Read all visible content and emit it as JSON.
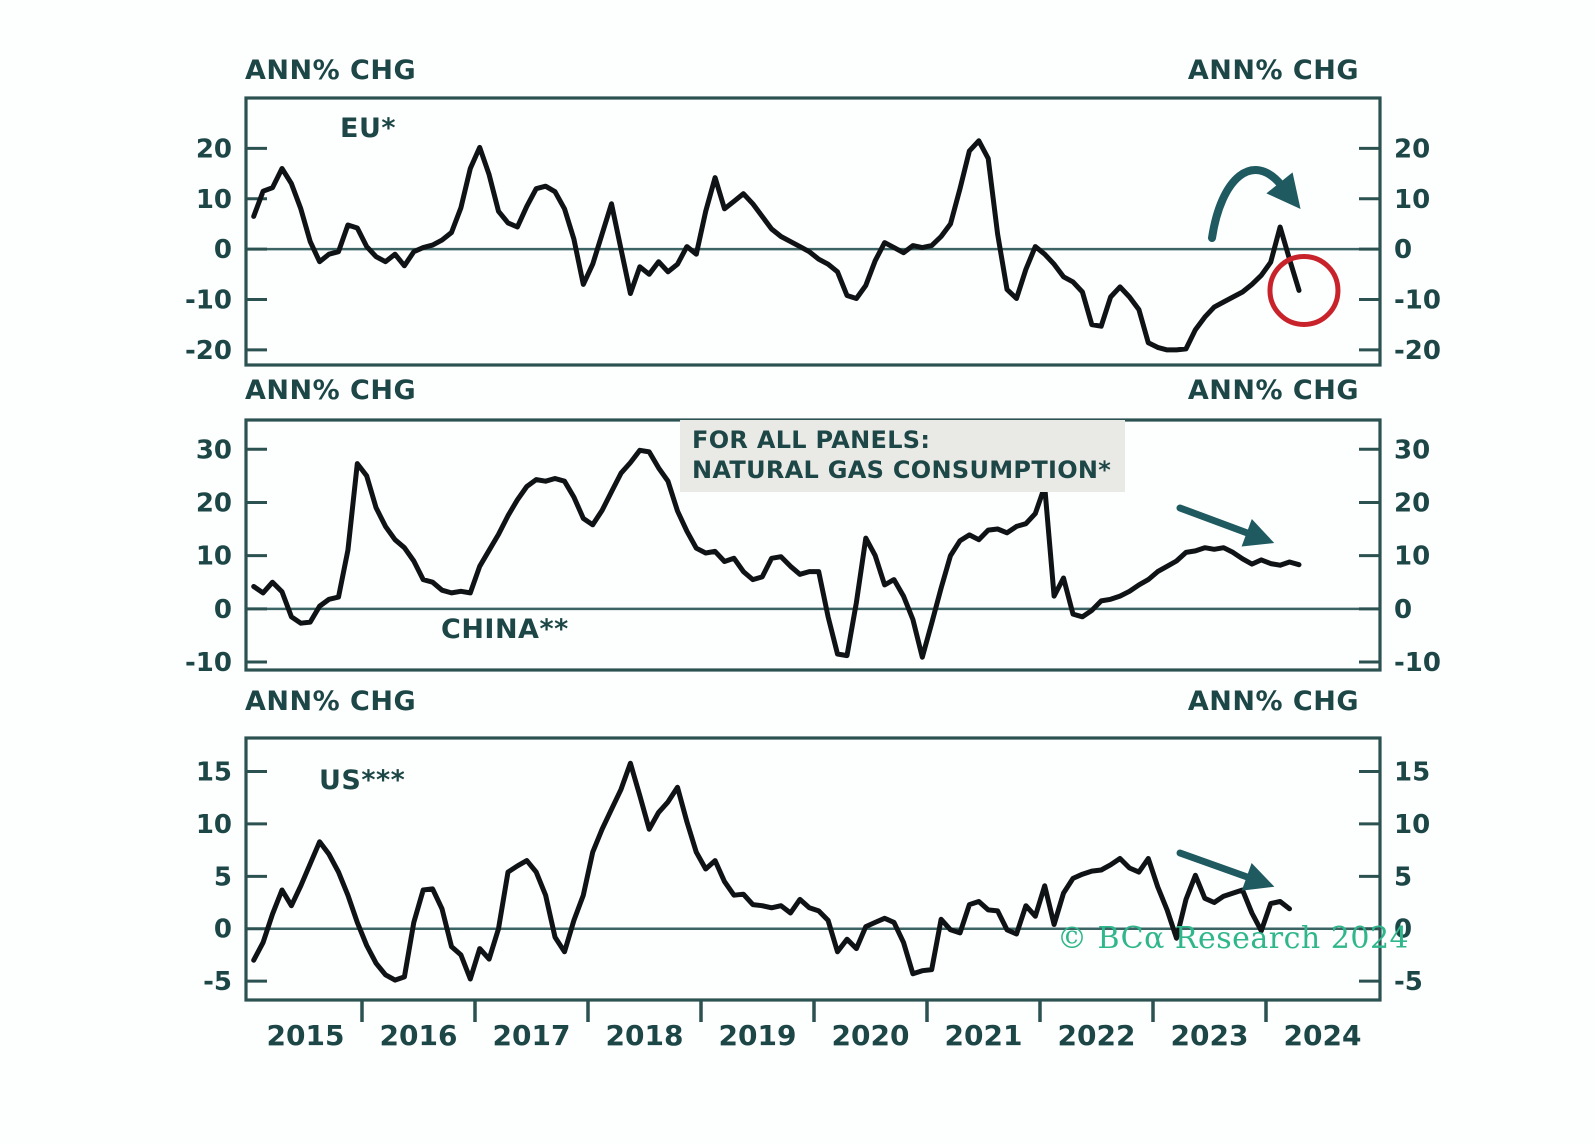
{
  "watermark": "© BCα Research 2024",
  "annotation_box": {
    "line1": "FOR ALL PANELS:",
    "line2": "NATURAL GAS CONSUMPTION*"
  },
  "chart_data": {
    "type": "line",
    "axis_unit_label": "ANN% CHG",
    "x_tick_labels": [
      "2015",
      "2016",
      "2017",
      "2018",
      "2019",
      "2020",
      "2021",
      "2022",
      "2023",
      "2024"
    ],
    "x_range_years": [
      2015,
      2025
    ],
    "frequency": "monthly",
    "grid": "off",
    "colors": {
      "line": "#101316",
      "axis": "#2c5151",
      "zero_line": "#3c6464",
      "text": "#1d4646",
      "arrow": "#1e5a60",
      "circle": "#c8232b",
      "note_bg": "#e9e9e6",
      "watermark": "#2fb78b"
    },
    "panels": [
      {
        "id": "eu",
        "series_label": "EU*",
        "ylabel_left": "ANN% CHG",
        "ylabel_right": "ANN% CHG",
        "yticks": [
          20,
          10,
          0,
          -10,
          -20
        ],
        "ylim": [
          -23,
          30
        ],
        "start": "2015-01",
        "values": [
          6.5,
          11.5,
          12.2,
          16,
          13,
          8,
          1.5,
          -2.5,
          -1,
          -0.5,
          4.8,
          4.2,
          0.5,
          -1.5,
          -2.5,
          -1,
          -3.3,
          -0.5,
          0.3,
          0.8,
          1.8,
          3.3,
          8.2,
          16,
          20.2,
          14.8,
          7.5,
          5.2,
          4.4,
          8.5,
          12,
          12.5,
          11.4,
          8,
          2,
          -7,
          -3,
          3,
          9,
          0,
          -8.8,
          -3.5,
          -5,
          -2.5,
          -4.5,
          -3,
          0.5,
          -1,
          7.5,
          14.2,
          8,
          9.5,
          11,
          9,
          6.5,
          4,
          2.5,
          1.5,
          0.5,
          -0.5,
          -2,
          -3,
          -4.5,
          -9.2,
          -9.8,
          -7.2,
          -2.3,
          1.3,
          0.3,
          -0.7,
          0.7,
          0.3,
          0.7,
          2.5,
          5,
          12,
          19.5,
          21.5,
          18,
          3,
          -8,
          -9.8,
          -4,
          0.5,
          -1,
          -3,
          -5.5,
          -6.5,
          -8.5,
          -15,
          -15.3,
          -9.5,
          -7.5,
          -9.5,
          -12,
          -18.6,
          -19.5,
          -20,
          -20,
          -19.8,
          -16,
          -13.5,
          -11.5,
          -10.5,
          -9.5,
          -8.5,
          -7,
          -5.2,
          -2.6,
          4.4,
          -2,
          -8.2
        ],
        "annotations": [
          {
            "type": "curved-arrow",
            "meaning": "rollover-of-recent-peak"
          },
          {
            "type": "circle",
            "around": "latest-data-point",
            "value": -8.2
          }
        ]
      },
      {
        "id": "china",
        "series_label": "CHINA**",
        "ylabel_left": "ANN% CHG",
        "ylabel_right": "ANN% CHG",
        "yticks": [
          30,
          20,
          10,
          0,
          -10
        ],
        "ylim": [
          -11.5,
          35.5
        ],
        "start": "2015-01",
        "values": [
          4.2,
          3,
          5,
          3.2,
          -1.5,
          -2.7,
          -2.5,
          0.5,
          1.8,
          2.2,
          11,
          27.3,
          25,
          19,
          15.5,
          13,
          11.5,
          9,
          5.5,
          5,
          3.5,
          3,
          3.3,
          3,
          8,
          11,
          14,
          17.5,
          20.5,
          23,
          24.3,
          24,
          24.5,
          24,
          21,
          17,
          15.8,
          18.5,
          22,
          25.5,
          27.5,
          29.8,
          29.5,
          26.5,
          24,
          18.4,
          14.6,
          11.4,
          10.5,
          10.8,
          8.9,
          9.5,
          7,
          5.5,
          6,
          9.5,
          9.8,
          8,
          6.5,
          7,
          7,
          -1.5,
          -8.5,
          -8.8,
          1.2,
          13.3,
          10,
          4.5,
          5.5,
          2.4,
          -2,
          -9.1,
          -2.7,
          3.9,
          10,
          12.8,
          13.9,
          13,
          14.8,
          15,
          14.3,
          15.5,
          16,
          17.9,
          23,
          2.4,
          5.8,
          -1,
          -1.5,
          -0.3,
          1.5,
          1.8,
          2.4,
          3.3,
          4.5,
          5.5,
          7,
          8,
          9,
          10.6,
          10.9,
          11.5,
          11.2,
          11.5,
          10.6,
          9.4,
          8.4,
          9.2,
          8.5,
          8.2,
          8.8,
          8.3
        ],
        "annotations": [
          {
            "type": "arrow",
            "direction": "right-down"
          }
        ]
      },
      {
        "id": "us",
        "series_label": "US***",
        "ylabel_left": "ANN% CHG",
        "ylabel_right": "ANN% CHG",
        "yticks": [
          15,
          10,
          5,
          0,
          -5
        ],
        "ylim": [
          -6.8,
          18.2
        ],
        "start": "2015-01",
        "values": [
          -3,
          -1.3,
          1.4,
          3.7,
          2.2,
          4.1,
          6.2,
          8.3,
          7.1,
          5.4,
          3.2,
          0.6,
          -1.6,
          -3.3,
          -4.4,
          -4.9,
          -4.6,
          0.6,
          3.7,
          3.8,
          1.9,
          -1.7,
          -2.5,
          -4.8,
          -1.9,
          -2.9,
          0,
          5.4,
          6,
          6.5,
          5.4,
          3.2,
          -0.8,
          -2.2,
          0.8,
          3.2,
          7.3,
          9.5,
          11.4,
          13.3,
          15.8,
          12.7,
          9.5,
          11.1,
          12.1,
          13.5,
          10.2,
          7.3,
          5.7,
          6.5,
          4.5,
          3.2,
          3.3,
          2.3,
          2.2,
          2,
          2.2,
          1.5,
          2.8,
          2,
          1.7,
          0.8,
          -2.2,
          -1,
          -1.9,
          0.2,
          0.6,
          1,
          0.6,
          -1.3,
          -4.3,
          -4,
          -3.9,
          0.9,
          -0.1,
          -0.4,
          2.3,
          2.6,
          1.8,
          1.7,
          -0.1,
          -0.5,
          2.2,
          1.2,
          4.1,
          0.4,
          3.4,
          4.8,
          5.2,
          5.5,
          5.6,
          6.1,
          6.7,
          5.8,
          5.4,
          6.7,
          4,
          1.8,
          -0.9,
          2.8,
          5.1,
          2.9,
          2.5,
          3.1,
          3.4,
          3.7,
          1.5,
          -0.2,
          2.4,
          2.6,
          1.9
        ],
        "annotations": [
          {
            "type": "arrow",
            "direction": "right-down"
          }
        ]
      }
    ]
  }
}
